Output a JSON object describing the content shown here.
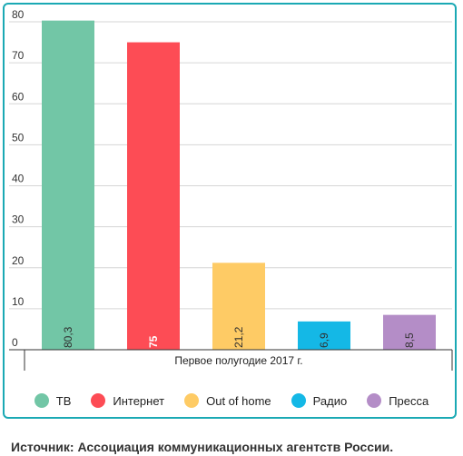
{
  "chart_data": {
    "type": "bar",
    "categories": [
      "ТВ",
      "Интернет",
      "Out of home",
      "Радио",
      "Пресса"
    ],
    "values": [
      80.3,
      75,
      21.2,
      6.9,
      8.5
    ],
    "value_labels": [
      "80,3",
      "75",
      "21,2",
      "6,9",
      "8,5"
    ],
    "colors": [
      "#72c6a6",
      "#fd4c55",
      "#fecb65",
      "#14b8e6",
      "#b48dc7"
    ],
    "label_colors": [
      "#2f2f2f",
      "#ffffff",
      "#2f2f2f",
      "#2f2f2f",
      "#2f2f2f"
    ],
    "label_bold": [
      false,
      true,
      false,
      false,
      false
    ],
    "xlabel": "Первое полугодие 2017 г.",
    "ylim": [
      0,
      80
    ],
    "yticks": [
      0,
      10,
      20,
      30,
      40,
      50,
      60,
      70,
      80
    ],
    "grid": true,
    "legend_position": "bottom"
  },
  "source_text": "Источник: Ассоциация коммуникационных агентств России."
}
